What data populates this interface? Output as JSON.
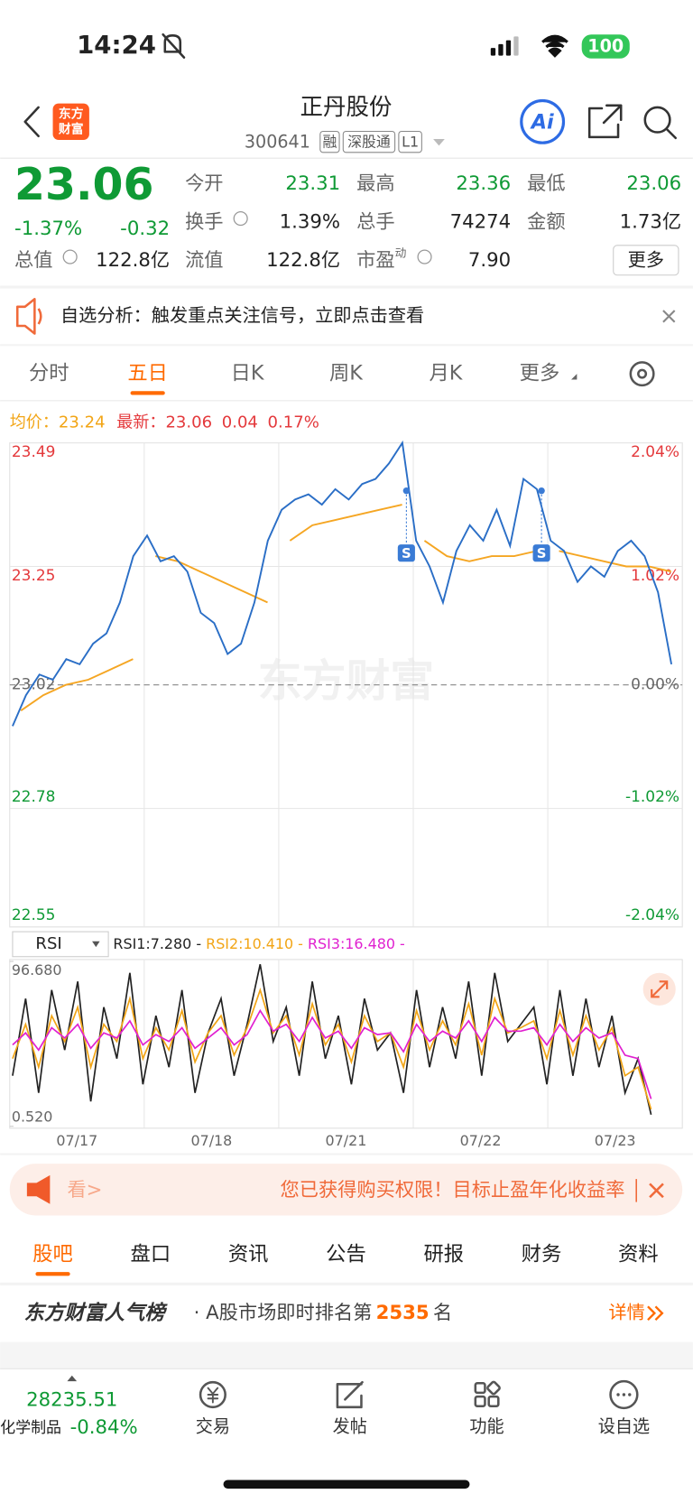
{
  "status": {
    "time": "14:24",
    "battery": "100"
  },
  "header": {
    "logo": [
      "东方",
      "财富"
    ],
    "title": "正丹股份",
    "code": "300641",
    "tags": [
      "融",
      "深股通",
      "L1"
    ],
    "ai": "Ai"
  },
  "quote": {
    "price": "23.06",
    "change_pct": "-1.37%",
    "change": "-0.32",
    "stats": [
      {
        "label": "今开",
        "value": "23.31"
      },
      {
        "label": "最高",
        "value": "23.36"
      },
      {
        "label": "最低",
        "value": "23.06"
      },
      {
        "label": "换手",
        "value": "1.39%"
      },
      {
        "label": "总手",
        "value": "74274"
      },
      {
        "label": "金额",
        "value": "1.73亿"
      },
      {
        "label": "总值",
        "value": "122.8亿"
      },
      {
        "label": "流值",
        "value": "122.8亿"
      },
      {
        "label": "市盈",
        "sup": "动",
        "value": "7.90"
      }
    ],
    "more": "更多"
  },
  "notice": "自选分析：触发重点关注信号，立即点击查看",
  "tabs": {
    "items": [
      "分时",
      "五日",
      "日K",
      "周K",
      "月K",
      "更多"
    ],
    "active": 1
  },
  "legend": {
    "avg_label": "均价：",
    "avg": "23.24",
    "last_label": "最新：",
    "last": "23.06",
    "change": "0.04",
    "change_pct": "0.17%"
  },
  "price_chart": {
    "ylim": [
      22.55,
      23.49
    ],
    "yticks": [
      23.49,
      23.25,
      23.02,
      22.78,
      22.55
    ],
    "pct_ticks": [
      "2.04%",
      "1.02%",
      "0.00%",
      "-1.02%",
      "-2.04%"
    ],
    "baseline": 23.02,
    "watermark": "东方财富",
    "markers": [
      "S",
      "S"
    ],
    "price_days": [
      [
        22.94,
        23.0,
        23.04,
        23.03,
        23.07,
        23.06,
        23.1,
        23.12,
        23.18,
        23.27
      ],
      [
        23.31,
        23.26,
        23.27,
        23.24,
        23.16,
        23.14,
        23.08,
        23.1,
        23.18,
        23.3
      ],
      [
        23.36,
        23.38,
        23.39,
        23.37,
        23.4,
        23.38,
        23.41,
        23.42,
        23.45,
        23.49
      ],
      [
        23.3,
        23.25,
        23.18,
        23.28,
        23.33,
        23.3,
        23.36,
        23.29,
        23.42,
        23.4
      ],
      [
        23.3,
        23.28,
        23.22,
        23.25,
        23.23,
        23.28,
        23.3,
        23.27,
        23.2,
        23.06
      ]
    ],
    "avg_days": [
      [
        22.97,
        23.0,
        23.02,
        23.03,
        23.05,
        23.07
      ],
      [
        23.27,
        23.26,
        23.24,
        23.22,
        23.2,
        23.18
      ],
      [
        23.3,
        23.33,
        23.34,
        23.35,
        23.36,
        23.37
      ],
      [
        23.3,
        23.27,
        23.26,
        23.27,
        23.27,
        23.28
      ],
      [
        23.28,
        23.27,
        23.26,
        23.25,
        23.25,
        23.24
      ]
    ]
  },
  "rsi": {
    "selector": "RSI",
    "legend": [
      "RSI1:7.280 - ",
      "RSI2:10.410 - ",
      "RSI3:16.480 -"
    ],
    "ylim": [
      0.52,
      96.68
    ],
    "yticks": [
      {
        "value": 96.68,
        "label": "96.680"
      },
      {
        "value": 0.52,
        "label": "0.520"
      }
    ],
    "rsi1": [
      30,
      75,
      20,
      80,
      45,
      85,
      15,
      70,
      40,
      90,
      25,
      65,
      35,
      80,
      20,
      55,
      75,
      30,
      60,
      95,
      50,
      70,
      30,
      85,
      40,
      65,
      25,
      75,
      45,
      55,
      20,
      80,
      35,
      70,
      40,
      85,
      30,
      90,
      50,
      60,
      70,
      25,
      80,
      30,
      75,
      35,
      65,
      20,
      40,
      7.28
    ],
    "rsi2": [
      40,
      60,
      35,
      65,
      50,
      70,
      35,
      60,
      50,
      75,
      40,
      58,
      45,
      68,
      38,
      55,
      65,
      42,
      58,
      80,
      55,
      65,
      42,
      72,
      48,
      60,
      38,
      65,
      50,
      55,
      35,
      68,
      45,
      62,
      48,
      72,
      42,
      75,
      55,
      58,
      62,
      40,
      68,
      42,
      65,
      45,
      58,
      30,
      35,
      10.41
    ],
    "rsi3": [
      48,
      55,
      45,
      58,
      52,
      60,
      46,
      55,
      52,
      62,
      48,
      54,
      50,
      58,
      46,
      52,
      58,
      48,
      54,
      68,
      56,
      60,
      50,
      64,
      52,
      56,
      46,
      58,
      54,
      55,
      44,
      60,
      50,
      56,
      52,
      62,
      50,
      64,
      56,
      56,
      58,
      48,
      60,
      50,
      58,
      52,
      55,
      42,
      40,
      16.48
    ]
  },
  "dates": [
    "07/17",
    "07/18",
    "07/21",
    "07/22",
    "07/23"
  ],
  "ad": {
    "left": "看>",
    "text": "您已获得购买权限！目标止盈年化收益率"
  },
  "sub_tabs": {
    "items": [
      "股吧",
      "盘口",
      "资讯",
      "公告",
      "研报",
      "财务",
      "资料"
    ],
    "active": 0
  },
  "ranking": {
    "brand": "东方财富人气榜",
    "text_before": "· A股市场即时排名第",
    "rank": "2535",
    "text_after": "名",
    "link": "详情"
  },
  "bottom": {
    "index_value": "28235.51",
    "sector": "化学制品",
    "sector_change": "-0.84%",
    "actions": [
      "交易",
      "发帖",
      "功能",
      "设自选"
    ]
  }
}
